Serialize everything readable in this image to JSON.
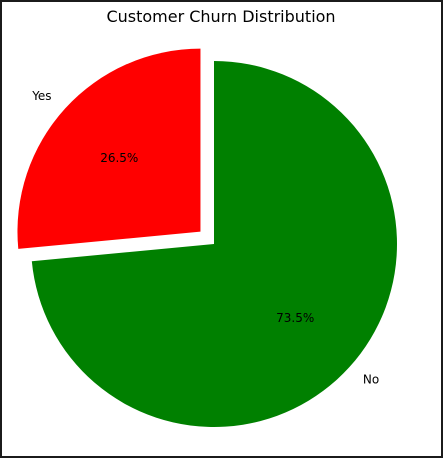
{
  "chart_data": {
    "type": "pie",
    "title": "Customer Churn Distribution",
    "categories": [
      "No",
      "Yes"
    ],
    "values": [
      73.5,
      26.5
    ],
    "value_labels": [
      "73.5%",
      "26.5%"
    ],
    "colors": [
      "#008000",
      "#ff0000"
    ],
    "explode": [
      0,
      0.1
    ],
    "start_angle": 90,
    "direction": "clockwise",
    "legend": "none",
    "grid": false
  }
}
